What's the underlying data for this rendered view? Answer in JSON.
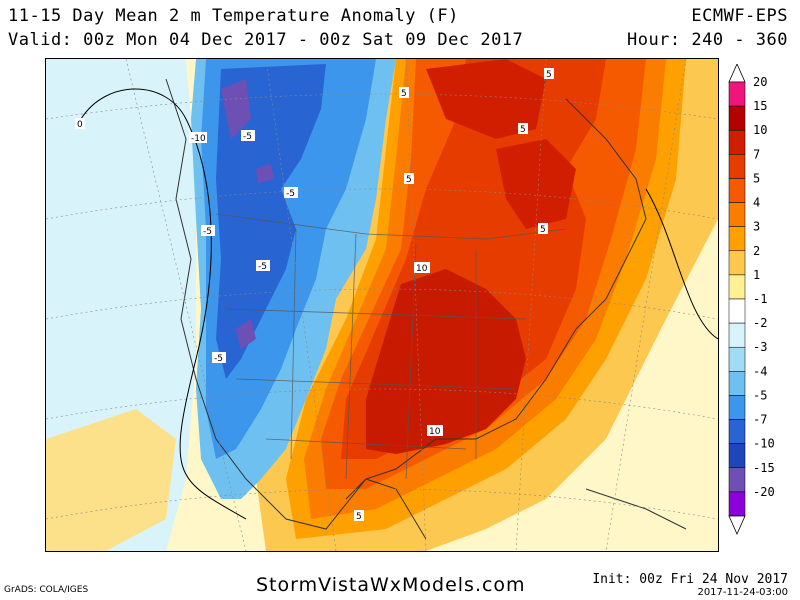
{
  "header": {
    "title": "11-15 Day Mean 2 m Temperature Anomaly (F)",
    "model": "ECMWF-EPS",
    "valid": "Valid: 00z Mon 04 Dec 2017 - 00z Sat 09 Dec 2017",
    "hour": "Hour: 240 - 360"
  },
  "footer": {
    "grads": "GrADS: COLA/IGES",
    "site": "StormVistaWxModels.com",
    "init": "Init: 00z Fri 24 Nov 2017",
    "timestamp": "2017-11-24-03:00"
  },
  "legend": {
    "labels": [
      "20",
      "15",
      "10",
      "7",
      "5",
      "4",
      "3",
      "2",
      "1",
      "-1",
      "-2",
      "-3",
      "-4",
      "-5",
      "-7",
      "-10",
      "-15",
      "-20"
    ],
    "colors": [
      "#f0147d",
      "#b40000",
      "#d21e00",
      "#e63c00",
      "#f55a00",
      "#fa7d00",
      "#fda000",
      "#fdc850",
      "#fff096",
      "#ffffff",
      "#d8f4fa",
      "#a0dcf5",
      "#6ec0f0",
      "#3c96eb",
      "#2864d2",
      "#1e46b9",
      "#6e50b4",
      "#8c00dc"
    ]
  },
  "map": {
    "contour_labels": [
      {
        "text": "-10"
      },
      {
        "text": "-5"
      },
      {
        "text": "-5"
      },
      {
        "text": "-5"
      },
      {
        "text": "-5"
      },
      {
        "text": "-5"
      },
      {
        "text": "5"
      },
      {
        "text": "5"
      },
      {
        "text": "5"
      },
      {
        "text": "5"
      },
      {
        "text": "5"
      },
      {
        "text": "5"
      },
      {
        "text": "10"
      },
      {
        "text": "10"
      },
      {
        "text": "0"
      }
    ]
  }
}
